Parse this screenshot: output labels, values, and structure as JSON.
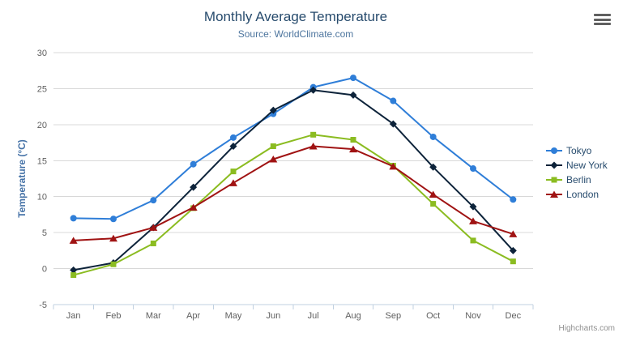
{
  "header": {
    "title": "Monthly Average Temperature",
    "subtitle": "Source: WorldClimate.com"
  },
  "credits": "Highcharts.com",
  "icons": {
    "menu": "hamburger-icon"
  },
  "chart_data": {
    "type": "line",
    "title": "Monthly Average Temperature",
    "subtitle": "Source: WorldClimate.com",
    "categories": [
      "Jan",
      "Feb",
      "Mar",
      "Apr",
      "May",
      "Jun",
      "Jul",
      "Aug",
      "Sep",
      "Oct",
      "Nov",
      "Dec"
    ],
    "series": [
      {
        "name": "Tokyo",
        "color": "#2f7ed8",
        "marker": "circle",
        "values": [
          7.0,
          6.9,
          9.5,
          14.5,
          18.2,
          21.5,
          25.2,
          26.5,
          23.3,
          18.3,
          13.9,
          9.6
        ]
      },
      {
        "name": "New York",
        "color": "#0d233a",
        "marker": "diamond",
        "values": [
          -0.2,
          0.8,
          5.7,
          11.3,
          17.0,
          22.0,
          24.8,
          24.1,
          20.1,
          14.1,
          8.6,
          2.5
        ]
      },
      {
        "name": "Berlin",
        "color": "#8bbc21",
        "marker": "square",
        "values": [
          -0.9,
          0.6,
          3.5,
          8.4,
          13.5,
          17.0,
          18.6,
          17.9,
          14.3,
          9.0,
          3.9,
          1.0
        ]
      },
      {
        "name": "London",
        "color": "#a01313",
        "marker": "triangle",
        "values": [
          3.9,
          4.2,
          5.7,
          8.5,
          11.9,
          15.2,
          17.0,
          16.6,
          14.2,
          10.3,
          6.6,
          4.8
        ]
      }
    ],
    "xlabel": "",
    "ylabel": "Temperature (°C)",
    "ylim": [
      -5,
      30
    ],
    "yticks": [
      -5,
      0,
      5,
      10,
      15,
      20,
      25,
      30
    ],
    "grid": true,
    "legend_position": "right"
  }
}
